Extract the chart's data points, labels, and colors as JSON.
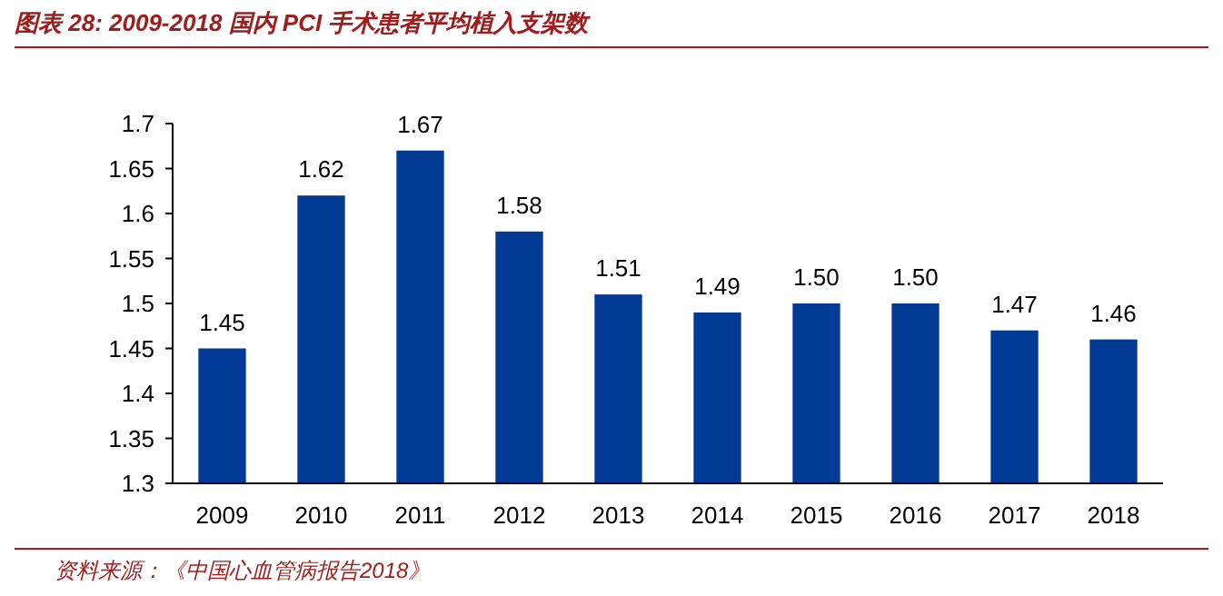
{
  "chart_data": {
    "type": "bar",
    "title": "图表 28:  2009-2018 国内 PCI 手术患者平均植入支架数",
    "categories": [
      "2009",
      "2010",
      "2011",
      "2012",
      "2013",
      "2014",
      "2015",
      "2016",
      "2017",
      "2018"
    ],
    "values": [
      1.45,
      1.62,
      1.67,
      1.58,
      1.51,
      1.49,
      1.5,
      1.5,
      1.47,
      1.46
    ],
    "value_labels": [
      "1.45",
      "1.62",
      "1.67",
      "1.58",
      "1.51",
      "1.49",
      "1.50",
      "1.50",
      "1.47",
      "1.46"
    ],
    "color": "#003a94",
    "ylim": [
      1.3,
      1.7
    ],
    "yticks": [
      1.3,
      1.35,
      1.4,
      1.45,
      1.5,
      1.55,
      1.6,
      1.65,
      1.7
    ],
    "annotations": [
      "资料来源：《中国心血管病报告2018》"
    ]
  }
}
